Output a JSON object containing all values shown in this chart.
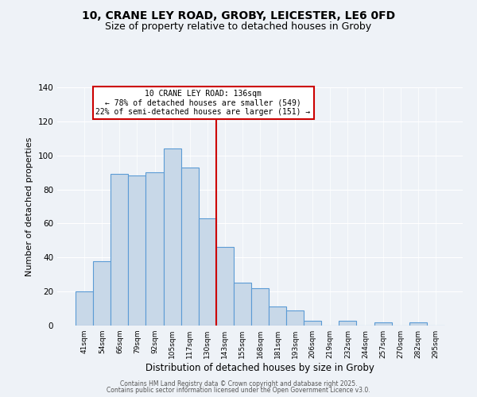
{
  "title": "10, CRANE LEY ROAD, GROBY, LEICESTER, LE6 0FD",
  "subtitle": "Size of property relative to detached houses in Groby",
  "xlabel": "Distribution of detached houses by size in Groby",
  "ylabel": "Number of detached properties",
  "bar_labels": [
    "41sqm",
    "54sqm",
    "66sqm",
    "79sqm",
    "92sqm",
    "105sqm",
    "117sqm",
    "130sqm",
    "143sqm",
    "155sqm",
    "168sqm",
    "181sqm",
    "193sqm",
    "206sqm",
    "219sqm",
    "232sqm",
    "244sqm",
    "257sqm",
    "270sqm",
    "282sqm",
    "295sqm"
  ],
  "bar_values": [
    20,
    38,
    89,
    88,
    90,
    104,
    93,
    63,
    46,
    25,
    22,
    11,
    9,
    3,
    0,
    3,
    0,
    2,
    0,
    2,
    0
  ],
  "bar_color": "#c8d8e8",
  "bar_edge_color": "#5b9bd5",
  "vline_x": 7.5,
  "vline_color": "#cc0000",
  "annotation_title": "10 CRANE LEY ROAD: 136sqm",
  "annotation_line1": "← 78% of detached houses are smaller (549)",
  "annotation_line2": "22% of semi-detached houses are larger (151) →",
  "annotation_box_edge": "#cc0000",
  "ylim": [
    0,
    140
  ],
  "yticks": [
    0,
    20,
    40,
    60,
    80,
    100,
    120,
    140
  ],
  "footer1": "Contains HM Land Registry data © Crown copyright and database right 2025.",
  "footer2": "Contains public sector information licensed under the Open Government Licence v3.0.",
  "background_color": "#eef2f7",
  "grid_color": "#ffffff",
  "title_fontsize": 10,
  "subtitle_fontsize": 9
}
